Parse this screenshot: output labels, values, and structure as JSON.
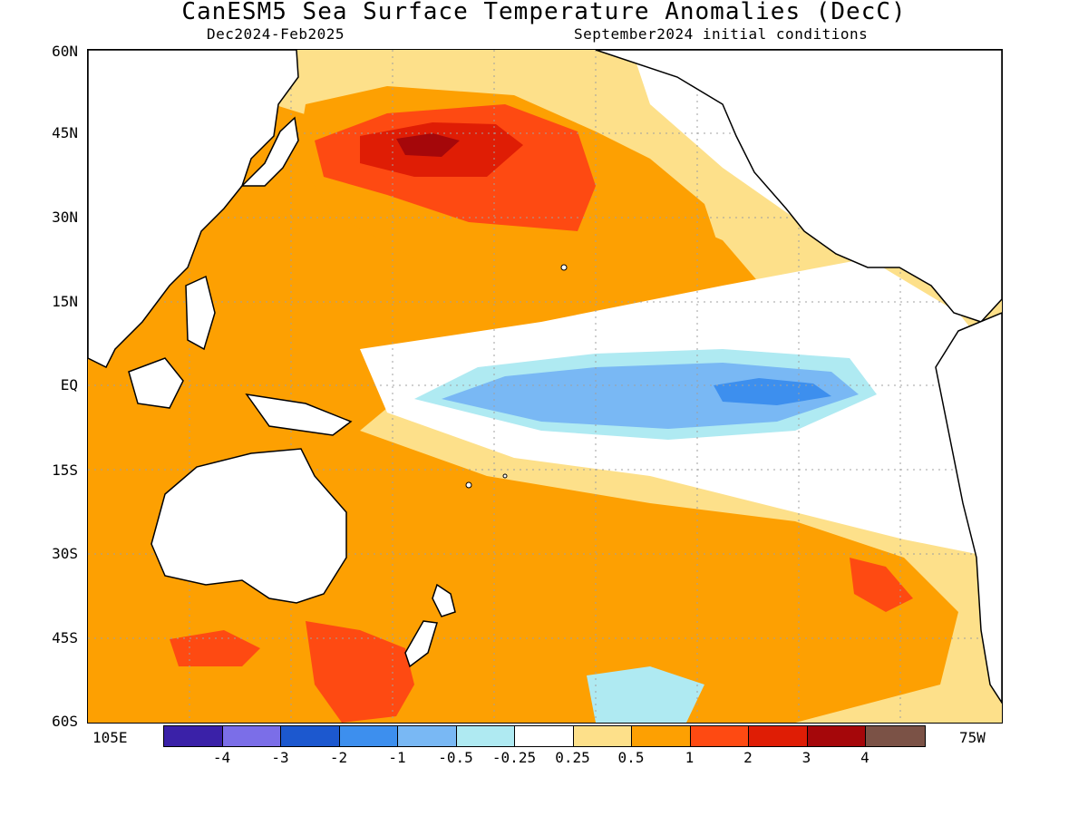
{
  "header": {
    "title": "CanESM5 Sea Surface Temperature Anomalies (DecC)",
    "period": "Dec2024-Feb2025",
    "init": "September2024 initial conditions"
  },
  "axes": {
    "lat_labels": [
      "60N",
      "45N",
      "30N",
      "15N",
      "EQ",
      "15S",
      "30S",
      "45S",
      "60S"
    ],
    "lon_left": "105E",
    "lon_right": "75W"
  },
  "legend": {
    "colors": [
      "#3a21a8",
      "#7b6ee8",
      "#1c58cf",
      "#3d8fee",
      "#79b8f4",
      "#afeaf2",
      "#ffffff",
      "#fde08a",
      "#fda002",
      "#fe4a12",
      "#df1d05",
      "#a5070a",
      "#7b5246"
    ],
    "labels": [
      "-4",
      "-3",
      "-2",
      "-1",
      "-0.5",
      "-0.25",
      "0.25",
      "0.5",
      "1",
      "2",
      "3",
      "4"
    ]
  },
  "colors": {
    "land": "#ffffff",
    "coast": "#000000",
    "grid": "#a0a0a0"
  }
}
